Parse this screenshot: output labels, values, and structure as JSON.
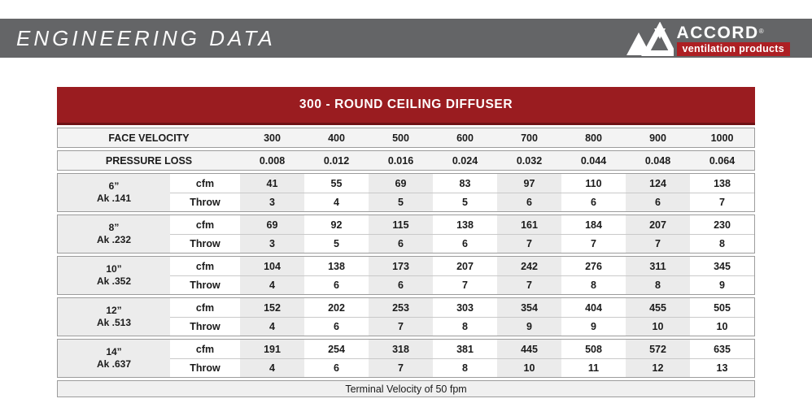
{
  "page": {
    "banner_title": "ENGINEERING DATA"
  },
  "brand": {
    "name": "ACCORD",
    "registered": "®",
    "tagline": "ventilation products",
    "logo_icon": "accord-triangles-icon"
  },
  "colors": {
    "banner_gray": "#646567",
    "table_header_red": "#9A1C20",
    "logo_red": "#AD1F23",
    "stripe_gray": "#EBEBEB",
    "border_gray": "#9C9C9C"
  },
  "table": {
    "title": "300 - ROUND CEILING DIFFUSER",
    "face_velocity_label": "FACE VELOCITY",
    "pressure_loss_label": "PRESSURE LOSS",
    "velocities": [
      "300",
      "400",
      "500",
      "600",
      "700",
      "800",
      "900",
      "1000"
    ],
    "pressure_losses": [
      "0.008",
      "0.012",
      "0.016",
      "0.024",
      "0.032",
      "0.044",
      "0.048",
      "0.064"
    ],
    "row_labels": {
      "cfm": "cfm",
      "throw": "Throw"
    },
    "groups": [
      {
        "size": "6”",
        "ak": "Ak .141",
        "cfm": [
          "41",
          "55",
          "69",
          "83",
          "97",
          "110",
          "124",
          "138"
        ],
        "throw": [
          "3",
          "4",
          "5",
          "5",
          "6",
          "6",
          "6",
          "7"
        ]
      },
      {
        "size": "8”",
        "ak": "Ak .232",
        "cfm": [
          "69",
          "92",
          "115",
          "138",
          "161",
          "184",
          "207",
          "230"
        ],
        "throw": [
          "3",
          "5",
          "6",
          "6",
          "7",
          "7",
          "7",
          "8"
        ]
      },
      {
        "size": "10”",
        "ak": "Ak .352",
        "cfm": [
          "104",
          "138",
          "173",
          "207",
          "242",
          "276",
          "311",
          "345"
        ],
        "throw": [
          "4",
          "6",
          "6",
          "7",
          "7",
          "8",
          "8",
          "9"
        ]
      },
      {
        "size": "12”",
        "ak": "Ak .513",
        "cfm": [
          "152",
          "202",
          "253",
          "303",
          "354",
          "404",
          "455",
          "505"
        ],
        "throw": [
          "4",
          "6",
          "7",
          "8",
          "9",
          "9",
          "10",
          "10"
        ]
      },
      {
        "size": "14”",
        "ak": "Ak .637",
        "cfm": [
          "191",
          "254",
          "318",
          "381",
          "445",
          "508",
          "572",
          "635"
        ],
        "throw": [
          "4",
          "6",
          "7",
          "8",
          "10",
          "11",
          "12",
          "13"
        ]
      }
    ],
    "footer": "Terminal Velocity of 50 fpm"
  }
}
